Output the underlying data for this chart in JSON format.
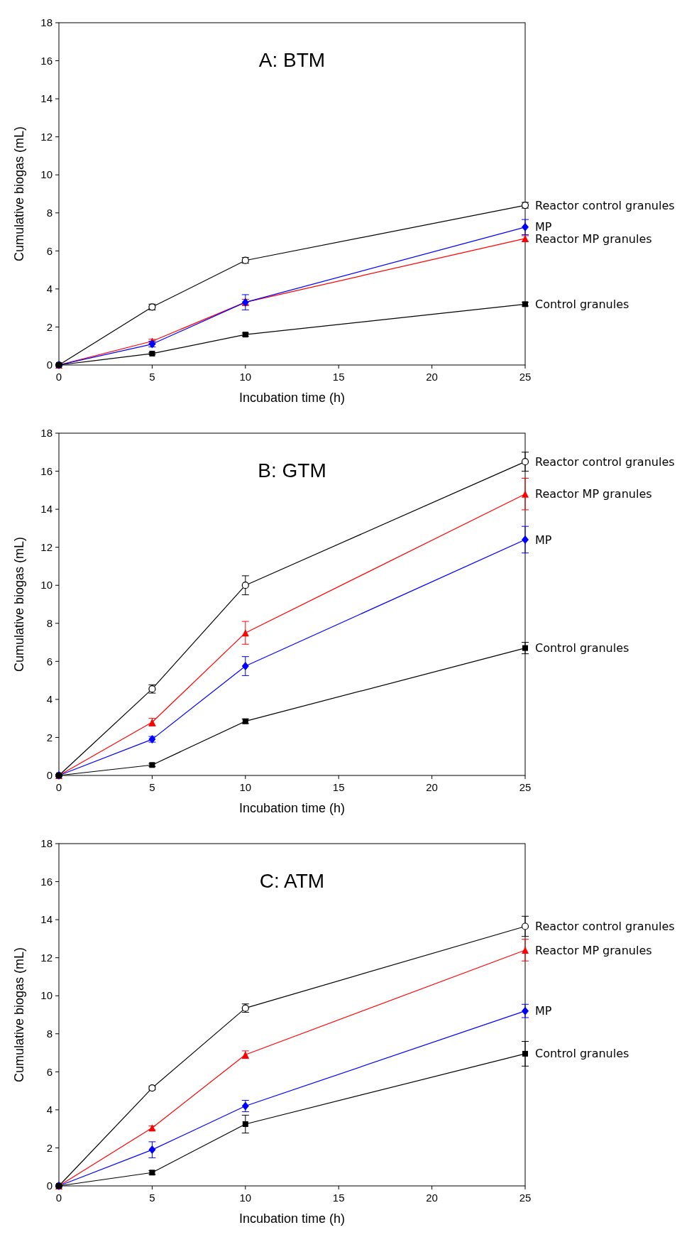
{
  "chart_data": [
    {
      "type": "line",
      "title": "A: BTM",
      "xlabel": "Incubation time (h)",
      "ylabel": "Cumulative biogas (mL)",
      "x": [
        0,
        5,
        10,
        25
      ],
      "xlim": [
        0,
        25
      ],
      "xticks": [
        0,
        5,
        10,
        15,
        20,
        25
      ],
      "ylim": [
        0,
        18
      ],
      "yticks": [
        0,
        2,
        4,
        6,
        8,
        10,
        12,
        14,
        16,
        18
      ],
      "grid": false,
      "legend": "right",
      "series": [
        {
          "name": "Reactor control granules",
          "color": "#000000",
          "marker": "circle",
          "values": [
            0,
            3.05,
            5.5,
            8.4
          ],
          "errors": [
            0.05,
            0.15,
            0.15,
            0.15
          ]
        },
        {
          "name": "Reactor MP granules",
          "color": "#ff0000",
          "marker": "triangle",
          "values": [
            0,
            1.25,
            3.3,
            6.65
          ],
          "errors": [
            0.05,
            0.1,
            0.15,
            0.15
          ]
        },
        {
          "name": "MP",
          "color": "#0000ff",
          "marker": "diamond",
          "values": [
            0,
            1.1,
            3.3,
            7.25
          ],
          "errors": [
            0.05,
            0.15,
            0.4,
            0.4
          ]
        },
        {
          "name": "Control granules",
          "color": "#000000",
          "marker": "square",
          "values": [
            0,
            0.6,
            1.6,
            3.2
          ],
          "errors": [
            0.05,
            0.05,
            0.08,
            0.1
          ]
        }
      ]
    },
    {
      "type": "line",
      "title": "B: GTM",
      "xlabel": "Incubation time (h)",
      "ylabel": "Cumulative biogas (mL)",
      "x": [
        0,
        5,
        10,
        25
      ],
      "xlim": [
        0,
        25
      ],
      "xticks": [
        0,
        5,
        10,
        15,
        20,
        25
      ],
      "ylim": [
        0,
        18
      ],
      "yticks": [
        0,
        2,
        4,
        6,
        8,
        10,
        12,
        14,
        16,
        18
      ],
      "grid": false,
      "legend": "right",
      "series": [
        {
          "name": "Reactor control granules",
          "color": "#000000",
          "marker": "circle",
          "values": [
            0,
            4.55,
            10.0,
            16.5
          ],
          "errors": [
            0.05,
            0.22,
            0.5,
            0.5
          ]
        },
        {
          "name": "Reactor MP granules",
          "color": "#ff0000",
          "marker": "triangle",
          "values": [
            0,
            2.8,
            7.5,
            14.8
          ],
          "errors": [
            0.05,
            0.2,
            0.6,
            0.83
          ]
        },
        {
          "name": "MP",
          "color": "#0000ff",
          "marker": "diamond",
          "values": [
            0,
            1.9,
            5.75,
            12.4
          ],
          "errors": [
            0.05,
            0.15,
            0.5,
            0.7
          ]
        },
        {
          "name": "Control granules",
          "color": "#000000",
          "marker": "square",
          "values": [
            0,
            0.55,
            2.85,
            6.7
          ],
          "errors": [
            0.05,
            0.08,
            0.12,
            0.3
          ]
        }
      ]
    },
    {
      "type": "line",
      "title": "C: ATM",
      "xlabel": "Incubation time (h)",
      "ylabel": "Cumulative biogas (mL)",
      "x": [
        0,
        5,
        10,
        25
      ],
      "xlim": [
        0,
        25
      ],
      "xticks": [
        0,
        5,
        10,
        15,
        20,
        25
      ],
      "ylim": [
        0,
        18
      ],
      "yticks": [
        0,
        2,
        4,
        6,
        8,
        10,
        12,
        14,
        16,
        18
      ],
      "grid": false,
      "legend": "right",
      "series": [
        {
          "name": "Reactor control granules",
          "color": "#000000",
          "marker": "circle",
          "values": [
            0,
            5.15,
            9.35,
            13.65
          ],
          "errors": [
            0.05,
            0.1,
            0.22,
            0.53
          ]
        },
        {
          "name": "Reactor MP granules",
          "color": "#ff0000",
          "marker": "triangle",
          "values": [
            0,
            3.05,
            6.9,
            12.4
          ],
          "errors": [
            0.05,
            0.1,
            0.2,
            0.57
          ]
        },
        {
          "name": "MP",
          "color": "#0000ff",
          "marker": "diamond",
          "values": [
            0,
            1.9,
            4.2,
            9.2
          ],
          "errors": [
            0.05,
            0.42,
            0.3,
            0.35
          ]
        },
        {
          "name": "Control granules",
          "color": "#000000",
          "marker": "square",
          "values": [
            0,
            0.7,
            3.25,
            6.95
          ],
          "errors": [
            0.05,
            0.1,
            0.47,
            0.65
          ]
        }
      ]
    }
  ]
}
